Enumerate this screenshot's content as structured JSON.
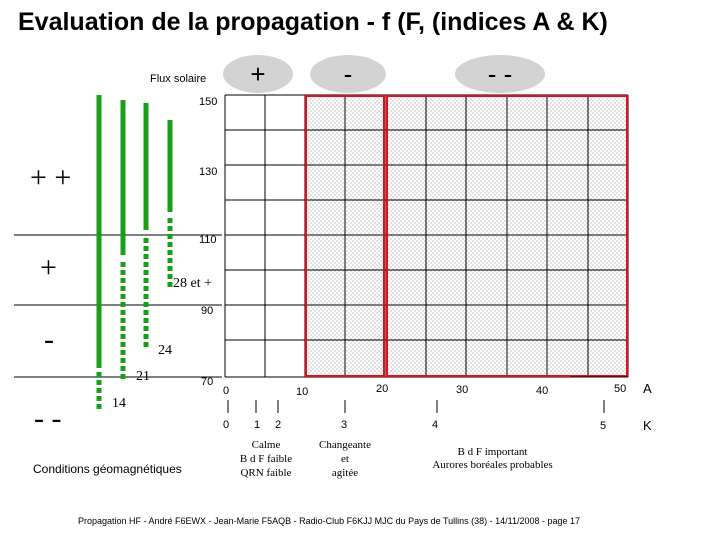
{
  "title": "Evaluation de la propagation - f (F, (indices A & K)",
  "flux_label": "Flux solaire",
  "ovals": [
    "+",
    "-",
    "- -"
  ],
  "flux_ticks": [
    "150",
    "130",
    "110",
    "90",
    "70"
  ],
  "side_signs": [
    "+ +",
    "+",
    "-",
    "- -"
  ],
  "bar_labels": [
    "28 et +",
    "24",
    "21",
    "14"
  ],
  "a_axis": {
    "label": "A",
    "ticks": [
      "0",
      "10",
      "20",
      "30",
      "40",
      "50"
    ]
  },
  "k_axis": {
    "label": "K",
    "ticks": [
      "0",
      "1",
      "2",
      "3",
      "4",
      "5"
    ]
  },
  "zones": {
    "calme": [
      "Calme",
      "B d F faible",
      "QRN faible"
    ],
    "changeante": [
      "Changeante",
      "et",
      "agitée"
    ],
    "important": [
      "B d F important",
      "Aurores boréales probables"
    ]
  },
  "conditions_label": "Conditions géomagnétiques",
  "footer": "Propagation HF - André F6EWX - Jean-Marie F5AQB - Radio-Club F6KJJ MJC du Pays de Tullins (38) - 14/11/2008 - page 17",
  "colors": {
    "green": "#1a9e1a",
    "red": "#e0101a",
    "hatch": "#c8c8c8",
    "oval": "#d3d3d3"
  }
}
